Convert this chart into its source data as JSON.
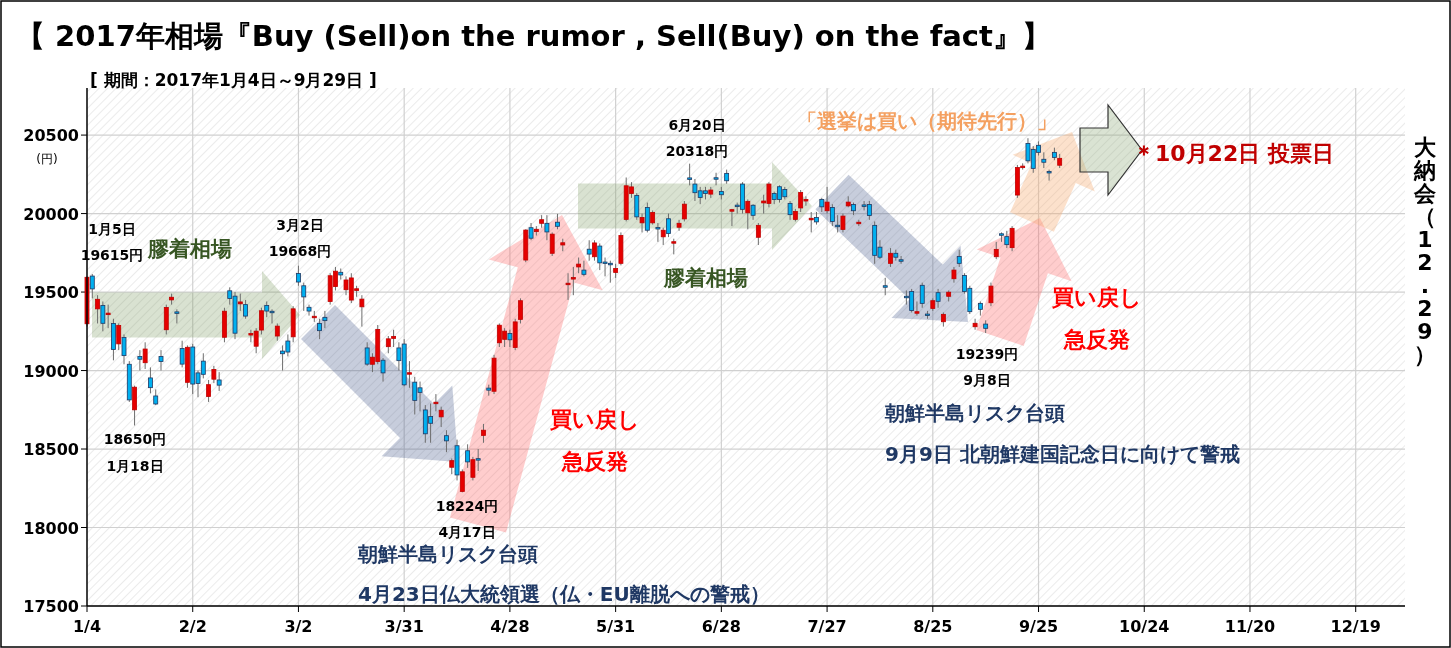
{
  "chart_data": {
    "type": "candlestick",
    "title": "【 2017年相場『Buy (Sell)on the rumor , Sell(Buy) on the fact』】",
    "subtitle": "[ 期間：2017年1月4日～9月29日 ]",
    "ylabel": "(円)",
    "annotations": [
      "1月5日",
      "19615円",
      "膠着相場",
      "18650円",
      "1月18日",
      "3月2日",
      "19668円",
      "18224円",
      "4月17日",
      "朝鮮半島リスク台頭",
      "4月23日仏大統領選（仏・EU離脱への警戒）",
      "買い戻し",
      "急反発",
      "6月20日",
      "20318円",
      "膠着相場",
      "「選挙は買い（期待先行）」",
      "＊10月22日 投票日",
      "大納会（12.29）",
      "買い戻し",
      "急反発",
      "19239円",
      "9月8日",
      "朝鮮半島リスク台頭",
      "9月9日 北朝鮮建国記念日に向けて警戒"
    ],
    "ylim": [
      17500,
      20800
    ],
    "yticks": [
      17500,
      18000,
      18500,
      19000,
      19500,
      20000,
      20500
    ],
    "grid": true,
    "categories": [
      "1/4",
      null,
      null,
      null,
      null,
      null,
      null,
      null,
      null,
      null,
      null,
      null,
      null,
      null,
      null,
      null,
      null,
      null,
      null,
      null,
      "2/2",
      null,
      null,
      null,
      null,
      null,
      null,
      null,
      null,
      null,
      null,
      null,
      null,
      null,
      null,
      null,
      null,
      null,
      null,
      null,
      "3/2",
      null,
      null,
      null,
      null,
      null,
      null,
      null,
      null,
      null,
      null,
      null,
      null,
      null,
      null,
      null,
      null,
      null,
      null,
      null,
      "3/31",
      null,
      null,
      null,
      null,
      null,
      null,
      null,
      null,
      null,
      null,
      null,
      null,
      null,
      null,
      null,
      null,
      null,
      null,
      null,
      "4/28",
      null,
      null,
      null,
      null,
      null,
      null,
      null,
      null,
      null,
      null,
      null,
      null,
      null,
      null,
      null,
      null,
      null,
      null,
      null,
      "5/31",
      null,
      null,
      null,
      null,
      null,
      null,
      null,
      null,
      null,
      null,
      null,
      null,
      null,
      null,
      null,
      null,
      null,
      null,
      null,
      "6/28",
      null,
      null,
      null,
      null,
      null,
      null,
      null,
      null,
      null,
      null,
      null,
      null,
      null,
      null,
      null,
      null,
      null,
      null,
      null,
      "7/27",
      null,
      null,
      null,
      null,
      null,
      null,
      null,
      null,
      null,
      null,
      null,
      null,
      null,
      null,
      null,
      null,
      null,
      null,
      null,
      "8/25",
      null,
      null,
      null,
      null,
      null,
      null,
      null,
      null,
      null,
      null,
      null,
      null,
      null,
      null,
      null,
      null,
      null,
      null,
      null,
      "9/25",
      null,
      null,
      null,
      null,
      null,
      null,
      null,
      null,
      null,
      null,
      null,
      null,
      null,
      null,
      null,
      null,
      null,
      null,
      null,
      "10/24",
      null,
      null,
      null,
      null,
      null,
      null,
      null,
      null,
      null,
      null,
      null,
      null,
      null,
      null,
      null,
      null,
      null,
      null,
      null,
      "11/20",
      null,
      null,
      null,
      null,
      null,
      null,
      null,
      null,
      null,
      null,
      null,
      null,
      null,
      null,
      null,
      null,
      null,
      null,
      null,
      "12/19",
      null,
      null,
      null,
      null,
      null,
      null,
      null,
      null
    ],
    "ohlc": [
      [
        19298,
        19600,
        19280,
        19594
      ],
      [
        19602,
        19615,
        19460,
        19520
      ],
      [
        19393,
        19480,
        19300,
        19454
      ],
      [
        19414,
        19440,
        19250,
        19301
      ],
      [
        19358,
        19420,
        19270,
        19364
      ],
      [
        19300,
        19330,
        19065,
        19134
      ],
      [
        19170,
        19300,
        19130,
        19287
      ],
      [
        19210,
        19230,
        19040,
        19095
      ],
      [
        19040,
        19060,
        18800,
        18813
      ],
      [
        18750,
        18904,
        18650,
        18894
      ],
      [
        19090,
        19130,
        19000,
        19072
      ],
      [
        19050,
        19180,
        19010,
        19137
      ],
      [
        18953,
        19020,
        18855,
        18891
      ],
      [
        18838,
        18880,
        18780,
        18787
      ],
      [
        19090,
        19130,
        19000,
        19057
      ],
      [
        19260,
        19420,
        19230,
        19402
      ],
      [
        19450,
        19490,
        19420,
        19467
      ],
      [
        19370,
        19390,
        19300,
        19368
      ],
      [
        19140,
        19190,
        19020,
        19041
      ],
      [
        18925,
        19160,
        18890,
        19148
      ],
      [
        19150,
        19170,
        18850,
        18914
      ],
      [
        18985,
        19000,
        18830,
        18918
      ],
      [
        19060,
        19110,
        18950,
        18976
      ],
      [
        18835,
        18940,
        18800,
        18910
      ],
      [
        18945,
        19030,
        18920,
        19007
      ],
      [
        18940,
        18990,
        18870,
        18907
      ],
      [
        19212,
        19400,
        19180,
        19378
      ],
      [
        19508,
        19530,
        19420,
        19459
      ],
      [
        19474,
        19500,
        19200,
        19238
      ],
      [
        19425,
        19490,
        19380,
        19437
      ],
      [
        19420,
        19450,
        19330,
        19347
      ],
      [
        19228,
        19260,
        19180,
        19234
      ],
      [
        19155,
        19270,
        19110,
        19251
      ],
      [
        19258,
        19400,
        19230,
        19381
      ],
      [
        19415,
        19440,
        19340,
        19379
      ],
      [
        19375,
        19390,
        19300,
        19371
      ],
      [
        19220,
        19300,
        19190,
        19283
      ],
      [
        19124,
        19160,
        19000,
        19107
      ],
      [
        19188,
        19230,
        19090,
        19118
      ],
      [
        19215,
        19410,
        19180,
        19393
      ],
      [
        19618,
        19668,
        19540,
        19564
      ],
      [
        19540,
        19560,
        19380,
        19469
      ],
      [
        19403,
        19420,
        19350,
        19379
      ],
      [
        19338,
        19380,
        19310,
        19344
      ],
      [
        19300,
        19330,
        19200,
        19254
      ],
      [
        19339,
        19380,
        19270,
        19318
      ],
      [
        19440,
        19620,
        19420,
        19604
      ],
      [
        19535,
        19660,
        19510,
        19633
      ],
      [
        19626,
        19650,
        19580,
        19609
      ],
      [
        19515,
        19600,
        19480,
        19577
      ],
      [
        19449,
        19620,
        19430,
        19590
      ],
      [
        19510,
        19540,
        19470,
        19521
      ],
      [
        19406,
        19480,
        19280,
        19455
      ],
      [
        19144,
        19180,
        19030,
        19041
      ],
      [
        19040,
        19110,
        18990,
        19085
      ],
      [
        19057,
        19290,
        19040,
        19262
      ],
      [
        19066,
        19080,
        18930,
        18985
      ],
      [
        19152,
        19220,
        19110,
        19202
      ],
      [
        19205,
        19260,
        19150,
        19217
      ],
      [
        19144,
        19180,
        19000,
        19063
      ],
      [
        19169,
        19200,
        18900,
        18909
      ],
      [
        18980,
        19060,
        18890,
        18983
      ],
      [
        18926,
        18960,
        18720,
        18810
      ],
      [
        18890,
        18930,
        18740,
        18861
      ],
      [
        18749,
        18780,
        18540,
        18597
      ],
      [
        18707,
        18790,
        18540,
        18664
      ],
      [
        18790,
        18850,
        18740,
        18797
      ],
      [
        18705,
        18770,
        18640,
        18747
      ],
      [
        18585,
        18620,
        18480,
        18552
      ],
      [
        18384,
        18440,
        18340,
        18426
      ],
      [
        18521,
        18560,
        18300,
        18335
      ],
      [
        18230,
        18370,
        18224,
        18355
      ],
      [
        18489,
        18530,
        18380,
        18418
      ],
      [
        18320,
        18450,
        18300,
        18432
      ],
      [
        18438,
        18500,
        18360,
        18430
      ],
      [
        18587,
        18660,
        18540,
        18620
      ],
      [
        18888,
        18910,
        18840,
        18875
      ],
      [
        18868,
        19100,
        18850,
        19079
      ],
      [
        19177,
        19300,
        19150,
        19289
      ],
      [
        19199,
        19270,
        19150,
        19251
      ],
      [
        19236,
        19260,
        19150,
        19196
      ],
      [
        19147,
        19330,
        19130,
        19310
      ],
      [
        19326,
        19460,
        19300,
        19445
      ],
      [
        19704,
        19900,
        19690,
        19895
      ],
      [
        19910,
        19940,
        19830,
        19843
      ],
      [
        19885,
        19920,
        19860,
        19900
      ],
      [
        19938,
        19990,
        19910,
        19961
      ],
      [
        19938,
        19990,
        19830,
        19883
      ],
      [
        19747,
        19880,
        19730,
        19869
      ],
      [
        19945,
        19998,
        19900,
        19919
      ],
      [
        19800,
        19840,
        19760,
        19814
      ],
      [
        19550,
        19620,
        19450,
        19553
      ],
      [
        19585,
        19660,
        19480,
        19590
      ],
      [
        19660,
        19720,
        19620,
        19678
      ],
      [
        19640,
        19700,
        19600,
        19613
      ],
      [
        19773,
        19830,
        19700,
        19742
      ],
      [
        19725,
        19830,
        19700,
        19813
      ],
      [
        19793,
        19810,
        19640,
        19686
      ],
      [
        19691,
        19720,
        19600,
        19682
      ],
      [
        19680,
        19700,
        19560,
        19677
      ],
      [
        19625,
        19680,
        19590,
        19650
      ],
      [
        19683,
        19880,
        19670,
        19860
      ],
      [
        19963,
        20230,
        19950,
        20177
      ],
      [
        20128,
        20200,
        20100,
        20170
      ],
      [
        20115,
        20130,
        19960,
        19979
      ],
      [
        19941,
        20000,
        19880,
        19975
      ],
      [
        20039,
        20070,
        19880,
        19894
      ],
      [
        19941,
        20020,
        19930,
        20007
      ],
      [
        19908,
        19940,
        19820,
        19905
      ],
      [
        19852,
        19910,
        19800,
        19894
      ],
      [
        19967,
        20000,
        19850,
        19873
      ],
      [
        19812,
        19840,
        19740,
        19820
      ],
      [
        19913,
        19960,
        19890,
        19938
      ],
      [
        19966,
        20080,
        19950,
        20060
      ],
      [
        20225,
        20318,
        20180,
        20220
      ],
      [
        20188,
        20220,
        20080,
        20133
      ],
      [
        20145,
        20170,
        20060,
        20103
      ],
      [
        20145,
        20170,
        20090,
        20128
      ],
      [
        20124,
        20170,
        20100,
        20150
      ],
      [
        20225,
        20260,
        20180,
        20222
      ],
      [
        20141,
        20170,
        20090,
        20120
      ],
      [
        20256,
        20280,
        20190,
        20209
      ],
      [
        20015,
        20030,
        19920,
        20025
      ],
      [
        20050,
        20070,
        20000,
        20048
      ],
      [
        20188,
        20200,
        20000,
        20027
      ],
      [
        20005,
        20090,
        19900,
        20078
      ],
      [
        20053,
        20060,
        19960,
        19989
      ],
      [
        19849,
        19940,
        19800,
        19925
      ],
      [
        20068,
        20120,
        20000,
        20080
      ],
      [
        20065,
        20200,
        20040,
        20188
      ],
      [
        20128,
        20140,
        20060,
        20090
      ],
      [
        20171,
        20180,
        20070,
        20090
      ],
      [
        20154,
        20170,
        20090,
        20107
      ],
      [
        20065,
        20080,
        19960,
        19993
      ],
      [
        19963,
        20030,
        19950,
        20014
      ],
      [
        20036,
        20150,
        20010,
        20134
      ],
      [
        20080,
        20110,
        20050,
        20090
      ],
      [
        19960,
        20010,
        19880,
        19970
      ],
      [
        19975,
        20010,
        19930,
        19947
      ],
      [
        20090,
        20100,
        20010,
        20043
      ],
      [
        20018,
        20170,
        20000,
        20073
      ],
      [
        20039,
        20060,
        19920,
        19950
      ],
      [
        19922,
        19990,
        19880,
        19920
      ],
      [
        19899,
        20000,
        19880,
        19984
      ],
      [
        20049,
        20110,
        20040,
        20073
      ],
      [
        20058,
        20070,
        19990,
        20018
      ],
      [
        19938,
        19960,
        19920,
        19942
      ],
      [
        20052,
        20080,
        20020,
        20049
      ],
      [
        20058,
        20080,
        19960,
        19988
      ],
      [
        19925,
        19950,
        19680,
        19734
      ],
      [
        19786,
        19830,
        19710,
        19722
      ],
      [
        19537,
        19590,
        19480,
        19534
      ],
      [
        19683,
        19780,
        19660,
        19747
      ],
      [
        19747,
        19770,
        19700,
        19722
      ],
      [
        19702,
        19730,
        19680,
        19700
      ],
      [
        19470,
        19510,
        19420,
        19467
      ],
      [
        19503,
        19520,
        19370,
        19382
      ],
      [
        19365,
        19440,
        19350,
        19375
      ],
      [
        19543,
        19560,
        19400,
        19428
      ],
      [
        19357,
        19380,
        19330,
        19353
      ],
      [
        19396,
        19460,
        19380,
        19445
      ],
      [
        19496,
        19520,
        19400,
        19441
      ],
      [
        19311,
        19370,
        19280,
        19358
      ],
      [
        19473,
        19510,
        19440,
        19499
      ],
      [
        19585,
        19660,
        19560,
        19640
      ],
      [
        19726,
        19770,
        19660,
        19683
      ],
      [
        19606,
        19620,
        19490,
        19503
      ],
      [
        19524,
        19540,
        19360,
        19375
      ],
      [
        19279,
        19330,
        19260,
        19301
      ],
      [
        19428,
        19440,
        19350,
        19390
      ],
      [
        19296,
        19320,
        19239,
        19269
      ],
      [
        19432,
        19560,
        19410,
        19538
      ],
      [
        19725,
        19820,
        19710,
        19772
      ],
      [
        19868,
        19880,
        19820,
        19865
      ],
      [
        19853,
        19890,
        19780,
        19802
      ],
      [
        19783,
        19920,
        19760,
        19906
      ],
      [
        20118,
        20310,
        20100,
        20293
      ],
      [
        20293,
        20320,
        20280,
        20302
      ],
      [
        20447,
        20480,
        20320,
        20336
      ],
      [
        20409,
        20430,
        20260,
        20288
      ],
      [
        20435,
        20460,
        20370,
        20390
      ],
      [
        20346,
        20390,
        20290,
        20327
      ],
      [
        20265,
        20280,
        20210,
        20262
      ],
      [
        20390,
        20420,
        20340,
        20358
      ],
      [
        20308,
        20380,
        20290,
        20352
      ],
      null,
      null,
      null,
      null,
      null,
      null,
      null,
      null,
      null,
      null,
      null,
      null,
      null,
      null,
      null,
      null,
      null,
      null,
      null,
      null,
      null,
      null,
      null,
      null,
      null,
      null,
      null,
      null,
      null,
      null,
      null,
      null,
      null,
      null,
      null,
      null,
      null,
      null,
      null,
      null,
      null,
      null,
      null,
      null,
      null,
      null,
      null,
      null,
      null,
      null,
      null,
      null,
      null,
      null,
      null,
      null,
      null,
      null,
      null,
      null,
      null,
      null,
      null,
      null
    ]
  }
}
